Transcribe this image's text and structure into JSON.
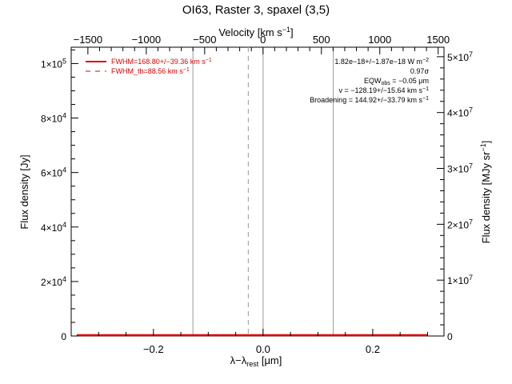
{
  "chart_data": {
    "type": "line",
    "title": "OI63, Raster 3, spaxel (3,5)",
    "x": {
      "label": "λ−λrest [μm]",
      "lim": [
        -0.35,
        0.33
      ],
      "ticks": [
        -0.2,
        0.0,
        0.2
      ],
      "tick_labels": [
        "−0.2",
        "0.0",
        "0.2"
      ]
    },
    "x_top": {
      "label": "Velocity [km s⁻¹]",
      "lim": [
        -1643,
        1550
      ],
      "ticks": [
        -1500,
        -1000,
        -500,
        0,
        500,
        1000,
        1500
      ],
      "tick_labels": [
        "−1500",
        "−1000",
        "−500",
        "0",
        "500",
        "1000",
        "1500"
      ]
    },
    "y_left": {
      "label": "Flux density [Jy]",
      "lim": [
        0,
        106000
      ],
      "ticks": [
        0,
        20000,
        40000,
        60000,
        80000,
        100000
      ],
      "tick_labels": [
        "0",
        "2×10⁴",
        "4×10⁴",
        "6×10⁴",
        "8×10⁴",
        "1×10⁵"
      ]
    },
    "y_right": {
      "label": "Flux density [MJy sr⁻¹]",
      "lim": [
        0,
        51700000
      ],
      "ticks": [
        0,
        10000000,
        20000000,
        30000000,
        40000000,
        50000000
      ],
      "tick_labels": [
        "0",
        "1×10⁷",
        "2×10⁷",
        "3×10⁷",
        "4×10⁷",
        "5×10⁷"
      ]
    },
    "vlines": [
      {
        "x": -0.128,
        "style": "solid",
        "color": "#9a9a9a"
      },
      {
        "x": -0.027,
        "style": "dashed",
        "color": "#9a9a9a"
      },
      {
        "x": 0.0,
        "style": "solid",
        "color": "#9a9a9a"
      },
      {
        "x": 0.128,
        "style": "solid",
        "color": "#9a9a9a"
      }
    ],
    "series": [
      {
        "style": "solid",
        "color": "#e00000",
        "x": [
          -0.34,
          0.3
        ],
        "y": [
          0,
          0
        ]
      }
    ],
    "legend": {
      "position": "top-left",
      "entries": [
        {
          "label": "FWHM=168.80+/−39.36 km s⁻¹",
          "style": "solid",
          "color": "#e00000"
        },
        {
          "label": "FWHM_th=88.56 km s⁻¹",
          "style": "dashed",
          "color": "#e00000"
        }
      ]
    },
    "annotations": [
      "1.82e−18+/−1.87e−18 W m⁻²",
      "0.97σ",
      "EQWobs = −0.05 μm",
      "v = −128.19+/−15.64 km s⁻¹",
      "Broadening = 144.92+/−33.79 km s⁻¹"
    ]
  }
}
